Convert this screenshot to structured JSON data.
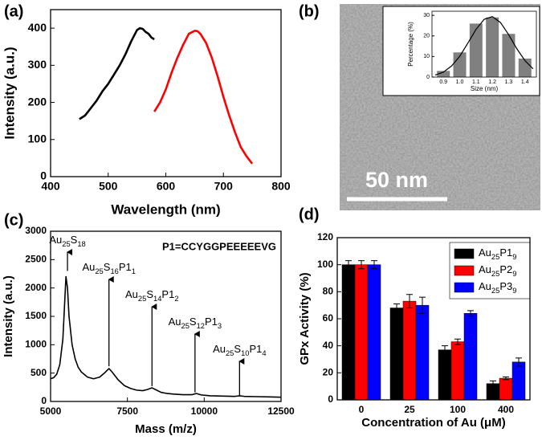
{
  "chart_data": [
    {
      "type": "line",
      "panel_label": "(a)",
      "xlabel": "Wavelength (nm)",
      "ylabel": "Intensity (a.u.)",
      "xlim": [
        400,
        800
      ],
      "xticks": [
        400,
        500,
        600,
        700,
        800
      ],
      "ylim": [
        0,
        450
      ],
      "yticks": [
        0,
        100,
        200,
        300,
        400
      ],
      "series": [
        {
          "color": "#000000",
          "x": [
            450,
            460,
            470,
            480,
            490,
            500,
            510,
            520,
            530,
            540,
            550,
            555,
            560,
            565,
            570,
            575,
            580
          ],
          "values": [
            155,
            165,
            185,
            205,
            230,
            250,
            275,
            300,
            330,
            365,
            395,
            400,
            398,
            390,
            385,
            375,
            370
          ]
        },
        {
          "color": "#ff0000",
          "x": [
            580,
            590,
            600,
            610,
            620,
            630,
            640,
            650,
            655,
            660,
            670,
            680,
            690,
            700,
            710,
            720,
            730,
            740,
            750
          ],
          "values": [
            175,
            200,
            235,
            280,
            320,
            355,
            385,
            393,
            392,
            385,
            360,
            320,
            270,
            215,
            165,
            120,
            80,
            55,
            35
          ]
        }
      ]
    },
    {
      "type": "bar",
      "panel_label": "(b)",
      "scale_bar": "50 nm",
      "xlabel": "Size (nm)",
      "ylabel": "Percentage (%)",
      "color": "#808080",
      "x": [
        0.9,
        1,
        1.1,
        1.2,
        1.3,
        1.4
      ],
      "values": [
        3,
        12,
        26,
        29,
        21,
        9
      ],
      "xlim": [
        0.83,
        1.47
      ],
      "xticks": [
        0.9,
        {
          "value": 1,
          "label": "1.0"
        },
        1.1,
        1.2,
        1.3,
        1.4
      ],
      "ylim": [
        0,
        32
      ],
      "yticks": [
        0,
        10,
        20,
        30
      ],
      "fit": {
        "color": "#000000",
        "x": [
          0.85,
          0.9,
          0.95,
          1,
          1.05,
          1.1,
          1.15,
          1.2,
          1.25,
          1.3,
          1.35,
          1.4,
          1.45
        ],
        "values": [
          1,
          2.4,
          5.4,
          10.1,
          16.5,
          23.2,
          28.1,
          29.4,
          26.5,
          20.6,
          13.8,
          8,
          4
        ]
      }
    },
    {
      "type": "line",
      "panel_label": "(c)",
      "xlabel": "Mass (m/z)",
      "ylabel": "Intensity (a.u.)",
      "note": "P1=CCYGGPEEEEEVG",
      "xlim": [
        5000,
        12500
      ],
      "xticks": [
        5000,
        7500,
        10000,
        12500
      ],
      "ylim": [
        0,
        3000
      ],
      "yticks": [
        0,
        500,
        1000,
        1500,
        2000,
        2500,
        3000
      ],
      "series": [
        {
          "color": "#000000",
          "x": [
            5000,
            5100,
            5200,
            5300,
            5400,
            5500,
            5550,
            5600,
            5700,
            5800,
            5900,
            6000,
            6200,
            6400,
            6600,
            6750,
            6900,
            7000,
            7200,
            7400,
            7600,
            7800,
            8000,
            8150,
            8300,
            8450,
            8600,
            8800,
            9000,
            9300,
            9600,
            9750,
            9900,
            10200,
            10600,
            11000,
            11150,
            11300,
            11700,
            12100,
            12500
          ],
          "values": [
            400,
            420,
            480,
            650,
            1100,
            2200,
            2000,
            1500,
            1000,
            750,
            600,
            520,
            430,
            400,
            430,
            500,
            580,
            520,
            380,
            280,
            230,
            200,
            190,
            210,
            240,
            200,
            160,
            140,
            130,
            120,
            120,
            140,
            115,
            100,
            95,
            90,
            100,
            90,
            85,
            80,
            75
          ]
        }
      ],
      "annotations": [
        {
          "text": "Au25S18",
          "x": 5550,
          "y": 2300
        },
        {
          "text": "Au25S16P11",
          "x": 6900,
          "y": 620
        },
        {
          "text": "Au25S14P12",
          "x": 8300,
          "y": 270
        },
        {
          "text": "Au25S12P13",
          "x": 9700,
          "y": 160
        },
        {
          "text": "Au25S10P14",
          "x": 11150,
          "y": 110
        }
      ]
    },
    {
      "type": "grouped-bar",
      "panel_label": "(d)",
      "xlabel": "Concentration of Au (μM)",
      "ylabel": "GPx Activity (%)",
      "categories": [
        "0",
        "25",
        "100",
        "400"
      ],
      "ylim": [
        0,
        120
      ],
      "yticks": [
        0,
        20,
        40,
        60,
        80,
        100,
        120
      ],
      "legend": "top-right",
      "series": [
        {
          "name": "Au25P19",
          "color": "#000000",
          "values": [
            100,
            68,
            37,
            12
          ],
          "errors": [
            3,
            3,
            3,
            2
          ]
        },
        {
          "name": "Au25P29",
          "color": "#ff0000",
          "values": [
            100,
            73,
            43,
            16
          ],
          "errors": [
            3,
            5,
            2,
            1
          ]
        },
        {
          "name": "Au25P39",
          "color": "#0000ff",
          "values": [
            100,
            70,
            64,
            28
          ],
          "errors": [
            3,
            6,
            2,
            3
          ]
        }
      ]
    }
  ]
}
